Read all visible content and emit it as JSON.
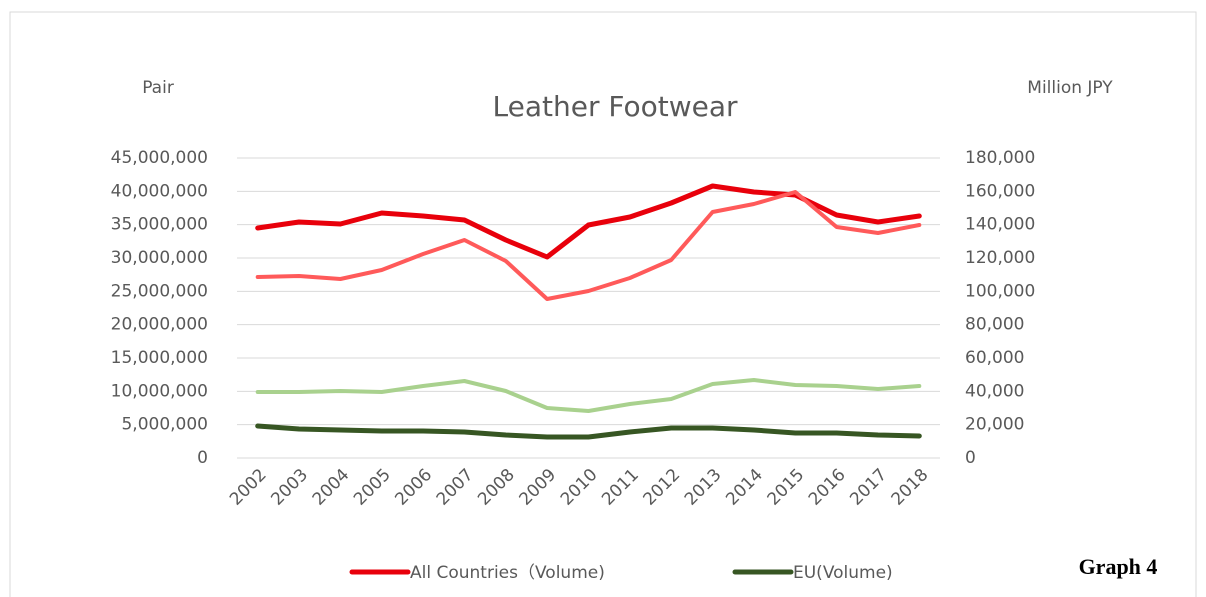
{
  "chart_data": {
    "type": "line",
    "title": "Leather Footwear",
    "ylabel": "Pair",
    "y2label": "Million JPY",
    "annotations": [
      "Graph 4"
    ],
    "categories": [
      "2002",
      "2003",
      "2004",
      "2005",
      "2006",
      "2007",
      "2008",
      "2009",
      "2010",
      "2011",
      "2012",
      "2013",
      "2014",
      "2015",
      "2016",
      "2017",
      "2018"
    ],
    "series": [
      {
        "name": "All Countries（Volume)",
        "color": "#e8000b",
        "width": 5,
        "values": [
          34500000,
          35400000,
          35100000,
          36750000,
          36300000,
          35700000,
          32700000,
          30150000,
          34950000,
          36150000,
          38250000,
          40800000,
          39900000,
          39450000,
          36450000,
          35400000,
          36300000
        ]
      },
      {
        "color": "#ff5a5a",
        "width": 4,
        "axis": "y2",
        "values": [
          108600,
          109200,
          107400,
          112800,
          122400,
          130800,
          118200,
          95400,
          100200,
          108000,
          118800,
          147600,
          152400,
          159600,
          138600,
          135000,
          139800
        ]
      },
      {
        "name": "EU(Volume)",
        "color": "#375623",
        "width": 5,
        "values": [
          4800000,
          4350000,
          4200000,
          4050000,
          4050000,
          3900000,
          3450000,
          3150000,
          3150000,
          3900000,
          4500000,
          4500000,
          4200000,
          3750000,
          3750000,
          3450000,
          3300000
        ]
      },
      {
        "color": "#a9d18e",
        "width": 4,
        "axis": "y2",
        "values": [
          39600,
          39600,
          40200,
          39600,
          43200,
          46200,
          40200,
          30000,
          28200,
          32400,
          35400,
          44400,
          46800,
          43800,
          43200,
          41400,
          43200
        ]
      }
    ],
    "ylim": [
      0,
      45000000
    ],
    "yticks": [
      0,
      {
        "value": 5000000,
        "label": "5,000,000"
      },
      {
        "value": 10000000,
        "label": "10,000,000"
      },
      {
        "value": 15000000,
        "label": "15,000,000"
      },
      {
        "value": 20000000,
        "label": "20,000,000"
      },
      {
        "value": 25000000,
        "label": "25,000,000"
      },
      {
        "value": 30000000,
        "label": "30,000,000"
      },
      {
        "value": 35000000,
        "label": "35,000,000"
      },
      {
        "value": 40000000,
        "label": "40,000,000"
      },
      {
        "value": 45000000,
        "label": "45,000,000"
      }
    ],
    "y2lim": [
      0,
      180000
    ],
    "y2ticks": [
      0,
      {
        "value": 20000,
        "label": "20,000"
      },
      {
        "value": 40000,
        "label": "40,000"
      },
      {
        "value": 60000,
        "label": "60,000"
      },
      {
        "value": 80000,
        "label": "80,000"
      },
      {
        "value": 100000,
        "label": "100,000"
      },
      {
        "value": 120000,
        "label": "120,000"
      },
      {
        "value": 140000,
        "label": "140,000"
      },
      {
        "value": 160000,
        "label": "160,000"
      },
      {
        "value": 180000,
        "label": "180,000"
      }
    ],
    "grid": true
  }
}
